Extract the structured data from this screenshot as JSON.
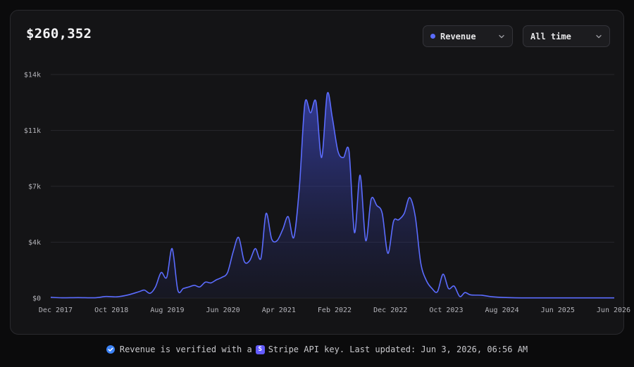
{
  "summary": {
    "total": "$260,352"
  },
  "controls": {
    "metric_label": "Revenue",
    "range_label": "All time",
    "accent": "#5b6cff"
  },
  "chart_data": {
    "type": "area",
    "title": "",
    "xlabel": "",
    "ylabel": "",
    "ylim": [
      0,
      14000
    ],
    "y_ticks": [
      0,
      3500,
      7000,
      10500,
      14000
    ],
    "y_tick_labels": [
      "$0",
      "$4k",
      "$7k",
      "$11k",
      "$14k"
    ],
    "x_tick_labels": [
      "Dec 2017",
      "Oct 2018",
      "Aug 2019",
      "Jun 2020",
      "Apr 2021",
      "Feb 2022",
      "Dec 2022",
      "Oct 2023",
      "Aug 2024",
      "Jun 2025",
      "Jun 2026"
    ],
    "grid": true,
    "series": [
      {
        "color": "#5b6cff",
        "points": [
          [
            "2017-12",
            50
          ],
          [
            "2018-02",
            20
          ],
          [
            "2018-05",
            30
          ],
          [
            "2018-08",
            20
          ],
          [
            "2018-10",
            100
          ],
          [
            "2018-12",
            80
          ],
          [
            "2019-02",
            200
          ],
          [
            "2019-04",
            400
          ],
          [
            "2019-05",
            500
          ],
          [
            "2019-06",
            300
          ],
          [
            "2019-07",
            700
          ],
          [
            "2019-08",
            1600
          ],
          [
            "2019-09",
            1300
          ],
          [
            "2019-10",
            3100
          ],
          [
            "2019-11",
            500
          ],
          [
            "2019-12",
            600
          ],
          [
            "2020-01",
            700
          ],
          [
            "2020-02",
            800
          ],
          [
            "2020-03",
            700
          ],
          [
            "2020-04",
            1000
          ],
          [
            "2020-05",
            950
          ],
          [
            "2020-06",
            1150
          ],
          [
            "2020-07",
            1300
          ],
          [
            "2020-08",
            1600
          ],
          [
            "2020-09",
            2900
          ],
          [
            "2020-10",
            3800
          ],
          [
            "2020-11",
            2300
          ],
          [
            "2020-12",
            2350
          ],
          [
            "2021-01",
            3100
          ],
          [
            "2021-02",
            2500
          ],
          [
            "2021-03",
            5300
          ],
          [
            "2021-04",
            3700
          ],
          [
            "2021-05",
            3600
          ],
          [
            "2021-06",
            4300
          ],
          [
            "2021-07",
            5100
          ],
          [
            "2021-08",
            3800
          ],
          [
            "2021-09",
            7000
          ],
          [
            "2021-10",
            12200
          ],
          [
            "2021-11",
            11600
          ],
          [
            "2021-12",
            12300
          ],
          [
            "2022-01",
            8800
          ],
          [
            "2022-02",
            12800
          ],
          [
            "2022-03",
            11300
          ],
          [
            "2022-04",
            9200
          ],
          [
            "2022-05",
            8800
          ],
          [
            "2022-06",
            9200
          ],
          [
            "2022-07",
            4100
          ],
          [
            "2022-08",
            7700
          ],
          [
            "2022-09",
            3600
          ],
          [
            "2022-10",
            6200
          ],
          [
            "2022-11",
            5800
          ],
          [
            "2022-12",
            5300
          ],
          [
            "2023-01",
            2800
          ],
          [
            "2023-02",
            4800
          ],
          [
            "2023-03",
            4900
          ],
          [
            "2023-04",
            5300
          ],
          [
            "2023-05",
            6300
          ],
          [
            "2023-06",
            5100
          ],
          [
            "2023-07",
            2200
          ],
          [
            "2023-08",
            1100
          ],
          [
            "2023-09",
            600
          ],
          [
            "2023-10",
            400
          ],
          [
            "2023-11",
            1500
          ],
          [
            "2023-12",
            600
          ],
          [
            "2024-01",
            750
          ],
          [
            "2024-02",
            100
          ],
          [
            "2024-03",
            350
          ],
          [
            "2024-04",
            200
          ],
          [
            "2024-06",
            180
          ],
          [
            "2024-08",
            80
          ],
          [
            "2024-12",
            20
          ],
          [
            "2025-06",
            15
          ],
          [
            "2026-06",
            15
          ]
        ]
      }
    ]
  },
  "footer": {
    "text_before": "Revenue is verified with a",
    "stripe_glyph": "S",
    "text_after": "Stripe API key. Last updated: Jun 3, 2026, 06:56 AM"
  }
}
